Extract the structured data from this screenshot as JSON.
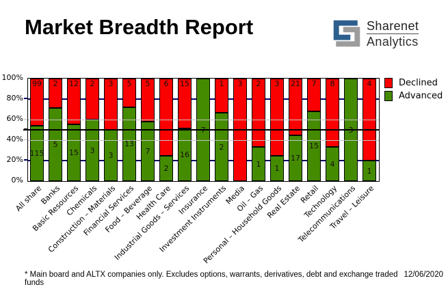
{
  "header": {
    "title": "Market Breadth Report",
    "logo": {
      "line1": "Sharenet",
      "line2": "Analytics",
      "icon_blue": "#2d5f8e",
      "icon_gray": "#9c9c9c"
    }
  },
  "chart_data": {
    "type": "bar",
    "stacked": true,
    "normalized": "percent",
    "categories": [
      "All share",
      "Banks",
      "Basic Resources",
      "Chemicals",
      "Construction – Materials",
      "Financial Services",
      "Food – Beverage",
      "Health Care",
      "Industrial Goods – Services",
      "Insurance",
      "Investment Instruments",
      "Media",
      "Oil – Gas",
      "Personal – Household Goods",
      "Real Estate",
      "Retail",
      "Technology",
      "Telecommunications",
      "Travel – Leisure"
    ],
    "series": [
      {
        "name": "Declined",
        "color": "#fb0000",
        "values": [
          99,
          2,
          12,
          2,
          3,
          5,
          5,
          6,
          15,
          0,
          1,
          3,
          2,
          3,
          21,
          7,
          8,
          0,
          4
        ]
      },
      {
        "name": "Advanced",
        "color": "#458b00",
        "values": [
          115,
          5,
          15,
          3,
          3,
          13,
          7,
          2,
          16,
          7,
          2,
          0,
          1,
          1,
          17,
          15,
          4,
          3,
          1
        ]
      }
    ],
    "ylabel": "",
    "xlabel": "",
    "ylim": [
      0,
      100
    ],
    "y_ticks": [
      {
        "value": 100,
        "label": "100%"
      },
      {
        "value": 80,
        "label": "80%"
      },
      {
        "value": 60,
        "label": "60%"
      },
      {
        "value": 40,
        "label": "40%"
      },
      {
        "value": 20,
        "label": "20%"
      },
      {
        "value": 0,
        "label": "0%"
      }
    ],
    "gridlines": [
      {
        "value": 80,
        "color": "#000066",
        "thickness": 2,
        "layer": "behind"
      },
      {
        "value": 60,
        "color": "#c3c3c3",
        "thickness": 1,
        "layer": "front"
      },
      {
        "value": 50,
        "color": "#000000",
        "thickness": 2,
        "layer": "front",
        "extend": true
      },
      {
        "value": 40,
        "color": "#c3c3c3",
        "thickness": 1,
        "layer": "front"
      },
      {
        "value": 20,
        "color": "#000066",
        "thickness": 2,
        "layer": "behind"
      }
    ],
    "legend_position": "top-right"
  },
  "footer": {
    "note": "* Main board and ALTX companies only. Excludes options, warrants, derivatives, debt and exchange traded funds",
    "date": "12/06/2020"
  }
}
